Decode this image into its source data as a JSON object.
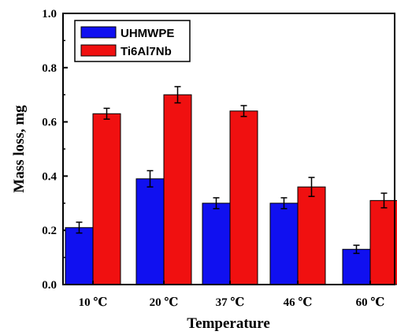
{
  "chart_data": {
    "type": "bar",
    "title": "",
    "xlabel": "Temperature",
    "ylabel": "Mass loss, mg",
    "ylim": [
      0.0,
      1.0
    ],
    "yticks": [
      "0.0",
      "0.2",
      "0.4",
      "0.6",
      "0.8",
      "1.0"
    ],
    "categories": [
      "10 ℃",
      "20 ℃",
      "37 ℃",
      "46 ℃",
      "60 ℃"
    ],
    "legend_position": "top-left",
    "grid": false,
    "series": [
      {
        "name": "UHMWPE",
        "color": "#1010f0",
        "values": [
          0.21,
          0.39,
          0.3,
          0.3,
          0.13
        ],
        "errors": [
          0.02,
          0.03,
          0.02,
          0.02,
          0.015
        ]
      },
      {
        "name": "Ti6Al7Nb",
        "color": "#f01010",
        "values": [
          0.63,
          0.7,
          0.64,
          0.36,
          0.31
        ],
        "errors": [
          0.02,
          0.03,
          0.02,
          0.035,
          0.027
        ]
      }
    ]
  }
}
